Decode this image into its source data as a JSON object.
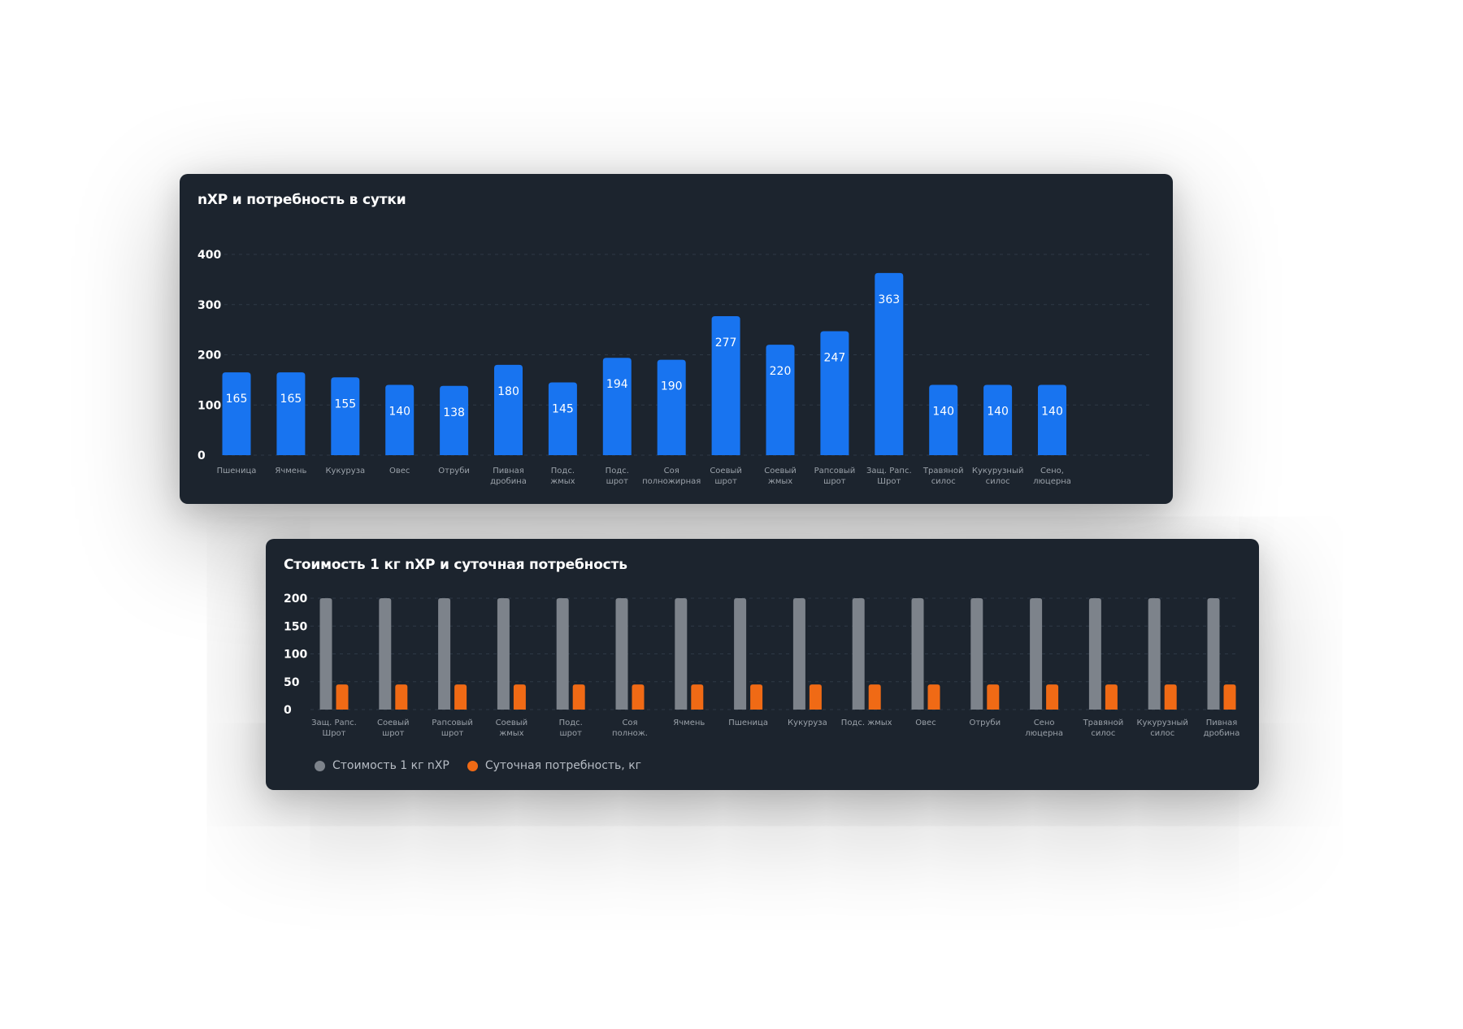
{
  "chart_data": [
    {
      "type": "bar",
      "title": "nXP и потребность в сутки",
      "categories": [
        [
          "Пшеница"
        ],
        [
          "Ячмень"
        ],
        [
          "Кукуруза"
        ],
        [
          "Овес"
        ],
        [
          "Отруби"
        ],
        [
          "Пивная",
          "дробина"
        ],
        [
          "Подс.",
          "жмых"
        ],
        [
          "Подс.",
          "шрот"
        ],
        [
          "Соя",
          "полножирная"
        ],
        [
          "Соевый",
          "шрот"
        ],
        [
          "Соевый",
          "жмых"
        ],
        [
          "Рапсовый",
          "шрот"
        ],
        [
          "Защ. Рапс.",
          "Шрот"
        ],
        [
          "Травяной",
          "силос"
        ],
        [
          "Кукурузный",
          "силос"
        ],
        [
          "Сено,",
          "люцерна"
        ]
      ],
      "values": [
        165,
        165,
        155,
        140,
        138,
        180,
        145,
        194,
        190,
        277,
        220,
        247,
        363,
        140,
        140,
        140
      ],
      "ylim": [
        0,
        400
      ],
      "yticks": [
        0,
        100,
        200,
        300,
        400
      ],
      "grid": true,
      "colors": {
        "bar": "#1874f0"
      }
    },
    {
      "type": "bar",
      "title": "Стоимость 1 кг nXP и суточная потребность",
      "categories": [
        [
          "Защ. Рапс.",
          "Шрот"
        ],
        [
          "Соевый",
          "шрот"
        ],
        [
          "Рапсовый",
          "шрот"
        ],
        [
          "Соевый",
          "жмых"
        ],
        [
          "Подс.",
          "шрот"
        ],
        [
          "Соя",
          "полнож."
        ],
        [
          "Ячмень"
        ],
        [
          "Пшеница"
        ],
        [
          "Кукуруза"
        ],
        [
          "Подс. жмых"
        ],
        [
          "Овес"
        ],
        [
          "Отруби"
        ],
        [
          "Сено",
          "люцерна"
        ],
        [
          "Травяной",
          "силос"
        ],
        [
          "Кукурузный",
          "силос"
        ],
        [
          "Пивная",
          "дробина"
        ]
      ],
      "series": [
        {
          "name": "Стоимость 1 кг nXP",
          "color": "#7d838b",
          "values": [
            200,
            200,
            200,
            200,
            200,
            200,
            200,
            200,
            200,
            200,
            200,
            200,
            200,
            200,
            200,
            200
          ]
        },
        {
          "name": "Суточная потребность, кг",
          "color": "#f06a15",
          "values": [
            45,
            45,
            45,
            45,
            45,
            45,
            45,
            45,
            45,
            45,
            45,
            45,
            45,
            45,
            45,
            45
          ]
        }
      ],
      "ylim": [
        0,
        200
      ],
      "yticks": [
        0,
        50,
        100,
        150,
        200
      ],
      "grid": true,
      "legend": "bottom-left"
    }
  ]
}
